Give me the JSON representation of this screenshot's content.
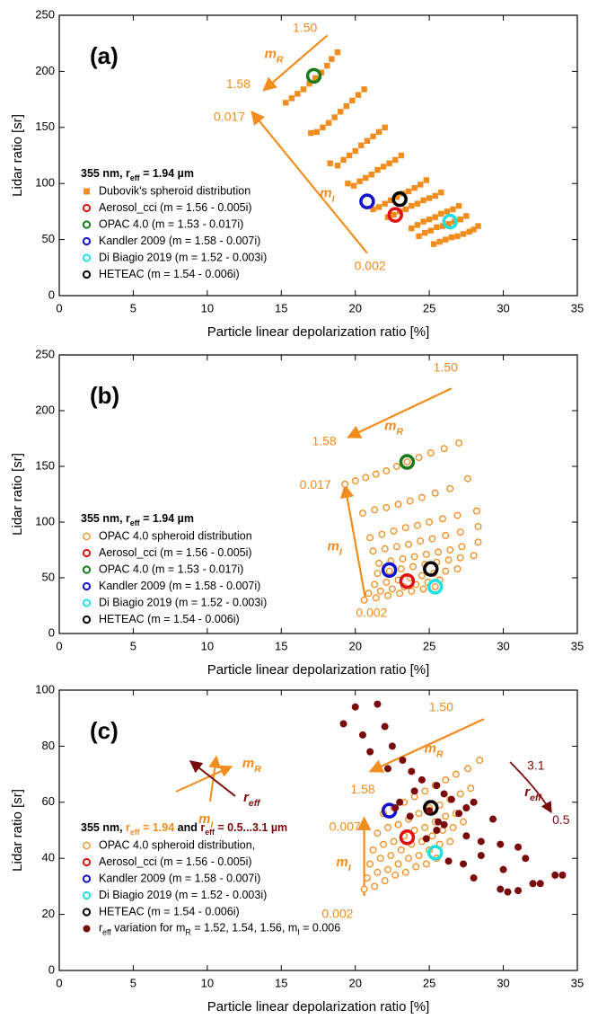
{
  "chart_data": [
    {
      "type": "scatter",
      "panel": "(a)",
      "xlabel": "Particle linear depolarization ratio [%]",
      "ylabel": "Lidar ratio [sr]",
      "xlim": [
        0,
        35
      ],
      "ylim": [
        0,
        250
      ],
      "xticks": [
        0,
        5,
        10,
        15,
        20,
        25,
        30,
        35
      ],
      "yticks": [
        0,
        50,
        100,
        150,
        200,
        250
      ],
      "legend_title": [
        {
          "text": "355 nm, r"
        },
        {
          "sub": "eff"
        },
        {
          "text": " = 1.94 µm"
        }
      ],
      "series": [
        {
          "name": "Dubovik's spheroid distribution",
          "color": "#f28c1c",
          "marker": "square",
          "x": [
            15.3,
            15.7,
            16.1,
            16.5,
            16.9,
            17.3,
            17.7,
            18.1,
            18.4,
            18.8,
            17,
            17.4,
            17.8,
            18.2,
            18.6,
            19,
            19.4,
            19.8,
            20.2,
            20.6,
            18.3,
            18.8,
            19.2,
            19.6,
            20,
            20.4,
            20.8,
            21.2,
            21.6,
            22,
            19.5,
            19.9,
            20.3,
            20.7,
            21.1,
            21.5,
            21.9,
            22.3,
            22.7,
            23.1,
            21.2,
            21.6,
            22,
            22.4,
            22.8,
            23.2,
            23.6,
            24,
            24.4,
            24.8,
            22.2,
            22.6,
            23,
            23.4,
            23.8,
            24.2,
            24.6,
            25,
            25.4,
            25.8,
            23.8,
            24.2,
            24.6,
            25,
            25.4,
            25.8,
            26.2,
            26.6,
            27,
            24.3,
            24.7,
            25.1,
            25.5,
            25.9,
            26.3,
            26.7,
            27.1,
            27.5,
            25.3,
            25.7,
            26.1,
            26.5,
            26.9,
            27.3,
            27.7,
            28,
            28.3
          ],
          "y": [
            172,
            176,
            180,
            184,
            189,
            194,
            199,
            205,
            211,
            217,
            145,
            146,
            150,
            154,
            159,
            164,
            169,
            174,
            179,
            184,
            118,
            116,
            121,
            125,
            129,
            134,
            138,
            142,
            146,
            150,
            100,
            98,
            102,
            105,
            108,
            112,
            115,
            118,
            121,
            125,
            77,
            79,
            82,
            85,
            88,
            91,
            93,
            96,
            99,
            103,
            70,
            72,
            75,
            77,
            80,
            82,
            85,
            87,
            89,
            92,
            60,
            63,
            66,
            68,
            70,
            73,
            75,
            77,
            80,
            53,
            56,
            58,
            61,
            62,
            64,
            66,
            68,
            71,
            46,
            48,
            50,
            52,
            53,
            55,
            57,
            59,
            62
          ]
        },
        {
          "name": "Aerosol_cci (m = 1.56 - 0.005i)",
          "color": "#e01010",
          "marker": "ring",
          "x": [
            22.7
          ],
          "y": [
            72
          ]
        },
        {
          "name": "OPAC 4.0 (m = 1.53 - 0.017i)",
          "color": "#1a7a1a",
          "marker": "ring",
          "x": [
            17.2
          ],
          "y": [
            196
          ]
        },
        {
          "name": "Kandler 2009 (m = 1.58 - 0.007i)",
          "color": "#1010d0",
          "marker": "ring",
          "x": [
            20.8
          ],
          "y": [
            84
          ]
        },
        {
          "name": "Di Biagio 2019 (m = 1.52 - 0.003i)",
          "color": "#22e0e0",
          "marker": "ring",
          "x": [
            26.4
          ],
          "y": [
            66
          ]
        },
        {
          "name": "HETEAC (m = 1.54 - 0.006i)",
          "color": "#000000",
          "marker": "ring",
          "x": [
            23
          ],
          "y": [
            86
          ]
        }
      ],
      "annotations": [
        {
          "text": "1.50",
          "color": "#f28c1c"
        },
        {
          "text": "1.58",
          "color": "#f28c1c"
        },
        {
          "parts": [
            {
              "text": "m"
            },
            {
              "sub": "R"
            }
          ],
          "color": "#f28c1c"
        },
        {
          "text": "0.017",
          "color": "#f28c1c"
        },
        {
          "text": "0.002",
          "color": "#f28c1c"
        },
        {
          "parts": [
            {
              "text": "m"
            },
            {
              "sub": "I"
            }
          ],
          "color": "#f28c1c"
        }
      ]
    },
    {
      "type": "scatter",
      "panel": "(b)",
      "xlabel": "Particle linear depolarization ratio [%]",
      "ylabel": "Lidar ratio [sr]",
      "xlim": [
        0,
        35
      ],
      "ylim": [
        0,
        250
      ],
      "xticks": [
        0,
        5,
        10,
        15,
        20,
        25,
        30,
        35
      ],
      "yticks": [
        0,
        50,
        100,
        150,
        200,
        250
      ],
      "legend_title": [
        {
          "text": "355 nm, r"
        },
        {
          "sub": "eff"
        },
        {
          "text": " = 1.94 µm"
        }
      ],
      "series": [
        {
          "name": "OPAC 4.0 spheroid distribution",
          "color": "#f28c1c",
          "marker": "circle",
          "x": [
            19.3,
            20,
            20.7,
            21.4,
            22.1,
            22.8,
            23.5,
            24.3,
            25.1,
            26,
            27,
            20.5,
            21.3,
            22.1,
            22.9,
            23.7,
            24.5,
            25.4,
            26.4,
            27.6,
            21,
            21.8,
            22.6,
            23.4,
            24.2,
            25,
            25.9,
            26.9,
            28.2,
            21.2,
            22,
            22.8,
            23.6,
            24.4,
            25.2,
            26.1,
            27.1,
            28.3,
            21.6,
            22.4,
            23.2,
            24,
            24.8,
            25.6,
            26.4,
            27.2,
            28.3,
            21.5,
            22.3,
            23.1,
            23.9,
            24.7,
            25.5,
            26.3,
            27.1,
            28,
            21.3,
            22.1,
            22.9,
            23.7,
            24.5,
            25.3,
            26.1,
            26.9,
            20.9,
            21.7,
            22.5,
            23.3,
            24.1,
            24.9,
            25.7,
            20.6,
            21.4,
            22.2,
            23,
            23.8,
            24.6,
            25.4
          ],
          "y": [
            134,
            137,
            140,
            143,
            146,
            150,
            154,
            158,
            162,
            166,
            171,
            108,
            111,
            113,
            116,
            119,
            122,
            126,
            130,
            139,
            86,
            89,
            92,
            95,
            97,
            100,
            103,
            106,
            110,
            74,
            76,
            78,
            80,
            83,
            85,
            88,
            91,
            96,
            63,
            65,
            67,
            69,
            71,
            73,
            75,
            78,
            82,
            54,
            56,
            58,
            60,
            62,
            64,
            66,
            68,
            70,
            44,
            46,
            48,
            50,
            52,
            54,
            56,
            58,
            36,
            38,
            40,
            42,
            44,
            46,
            48,
            30,
            32,
            34,
            36,
            38,
            40,
            42
          ]
        },
        {
          "name": "Aerosol_cci (m = 1.56 - 0.005i)",
          "color": "#e01010",
          "marker": "ring",
          "x": [
            23.5
          ],
          "y": [
            47
          ]
        },
        {
          "name": "OPAC 4.0 (m = 1.53 - 0.017i)",
          "color": "#1a7a1a",
          "marker": "ring",
          "x": [
            23.5
          ],
          "y": [
            154
          ]
        },
        {
          "name": "Kandler 2009 (m = 1.58 - 0.007i)",
          "color": "#1010d0",
          "marker": "ring",
          "x": [
            22.3
          ],
          "y": [
            57
          ]
        },
        {
          "name": "Di Biagio 2019 (m = 1.52 - 0.003i)",
          "color": "#22e0e0",
          "marker": "ring",
          "x": [
            25.4
          ],
          "y": [
            42
          ]
        },
        {
          "name": "HETEAC (m = 1.54 - 0.006i)",
          "color": "#000000",
          "marker": "ring",
          "x": [
            25.1
          ],
          "y": [
            58
          ]
        }
      ],
      "annotations": [
        {
          "text": "1.50",
          "color": "#f28c1c"
        },
        {
          "parts": [
            {
              "text": "m"
            },
            {
              "sub": "R"
            }
          ],
          "color": "#f28c1c"
        },
        {
          "text": "1.58",
          "color": "#f28c1c"
        },
        {
          "text": "0.017",
          "color": "#f28c1c"
        },
        {
          "text": "0.002",
          "color": "#f28c1c"
        },
        {
          "parts": [
            {
              "text": "m"
            },
            {
              "sub": "I"
            }
          ],
          "color": "#f28c1c"
        }
      ]
    },
    {
      "type": "scatter",
      "panel": "(c)",
      "xlabel": "Particle linear depolarization ratio [%]",
      "ylabel": "Lidar ratio [sr]",
      "xlim": [
        0,
        35
      ],
      "ylim": [
        0,
        100
      ],
      "xticks": [
        0,
        5,
        10,
        15,
        20,
        25,
        30,
        35
      ],
      "yticks": [
        0,
        20,
        40,
        60,
        80,
        100
      ],
      "legend_title": [
        {
          "text": "355 nm, "
        },
        {
          "text": "r",
          "color": "#f28c1c"
        },
        {
          "sub": "eff",
          "color": "#f28c1c"
        },
        {
          "text": " = 1.94",
          "color": "#f28c1c"
        },
        {
          "text": " and "
        },
        {
          "text": "r",
          "color": "#7a0a0a"
        },
        {
          "sub": "eff",
          "color": "#7a0a0a"
        },
        {
          "text": " = 0.5...3.1 µm",
          "color": "#7a0a0a"
        }
      ],
      "series": [
        {
          "name": "OPAC 4.0 spheroid distribution,",
          "color": "#f28c1c",
          "marker": "circle",
          "x": [
            20.6,
            21.3,
            22,
            22.7,
            23.4,
            24.1,
            24.8,
            25.5,
            20.8,
            21.5,
            22.2,
            22.9,
            23.6,
            24.3,
            25,
            25.7,
            26.4,
            21,
            21.7,
            22.4,
            23.1,
            23.8,
            24.5,
            25.2,
            25.9,
            26.6,
            27.3,
            21.2,
            21.9,
            22.6,
            23.3,
            24,
            24.7,
            25.4,
            26.1,
            26.8,
            27.5,
            21.5,
            22.2,
            22.9,
            23.6,
            24.3,
            25,
            25.7,
            26.4,
            27.1,
            27.8,
            21.9,
            22.6,
            23.3,
            24,
            24.7,
            25.4,
            26.1,
            26.8,
            27.6,
            28.4
          ],
          "y": [
            29,
            30,
            32,
            34,
            35,
            37,
            38,
            40,
            33,
            35,
            36,
            38,
            40,
            41,
            43,
            45,
            46,
            38,
            40,
            41,
            43,
            45,
            46,
            48,
            50,
            51,
            53,
            43,
            45,
            46,
            48,
            50,
            51,
            53,
            55,
            56,
            58,
            49,
            51,
            52,
            54,
            56,
            58,
            59,
            61,
            63,
            65,
            56,
            58,
            60,
            62,
            64,
            66,
            68,
            70,
            72,
            75
          ]
        },
        {
          "name": "Aerosol_cci (m = 1.56 - 0.005i)",
          "color": "#e01010",
          "marker": "ring",
          "x": [
            23.5
          ],
          "y": [
            47.5
          ]
        },
        {
          "name": "Kandler 2009 (m = 1.58 - 0.007i)",
          "color": "#1010d0",
          "marker": "ring",
          "x": [
            22.3
          ],
          "y": [
            57
          ]
        },
        {
          "name": "Di Biagio 2019 (m = 1.52 - 0.003i)",
          "color": "#22e0e0",
          "marker": "ring",
          "x": [
            25.4
          ],
          "y": [
            42
          ]
        },
        {
          "name": "HETEAC (m = 1.54 - 0.006i)",
          "color": "#000000",
          "marker": "ring",
          "x": [
            25.1
          ],
          "y": [
            58
          ]
        },
        {
          "name": [
            {
              "text": "r"
            },
            {
              "sub": "eff"
            },
            {
              "text": " variation for m"
            },
            {
              "sub": "R"
            },
            {
              "text": " = 1.52, 1.54, 1.56, m"
            },
            {
              "sub": "I"
            },
            {
              "text": " = 0.006"
            }
          ],
          "color": "#7a0a0a",
          "marker": "dot",
          "x": [
            19.2,
            20,
            21.5,
            20.5,
            22,
            21,
            22.5,
            23.2,
            22.2,
            23.8,
            24.5,
            25.5,
            24,
            23,
            26,
            26.5,
            27.5,
            28,
            27,
            26,
            25.5,
            27.5,
            28.5,
            29.3,
            29.8,
            31,
            30,
            31.5,
            29.8,
            30.3,
            31,
            32,
            32.5,
            33.5,
            34,
            28.5,
            25.6,
            24.8,
            26.3,
            27.3,
            28,
            25,
            22.7,
            23.7
          ],
          "y": [
            88,
            94,
            95,
            84,
            87,
            78,
            80,
            75,
            72,
            71,
            68,
            66,
            64,
            60,
            63,
            61,
            58,
            60,
            56,
            52,
            50,
            48,
            46,
            54,
            45,
            44,
            36,
            40,
            29,
            28,
            28.5,
            31,
            31,
            34,
            34,
            41,
            53,
            47,
            39,
            38,
            33,
            57,
            58,
            55
          ]
        }
      ],
      "annotations": [
        {
          "text": "1.50",
          "color": "#f28c1c"
        },
        {
          "parts": [
            {
              "text": "m"
            },
            {
              "sub": "R"
            }
          ],
          "color": "#f28c1c"
        },
        {
          "text": "1.58",
          "color": "#f28c1c"
        },
        {
          "text": "0.007",
          "color": "#f28c1c"
        },
        {
          "text": "0.002",
          "color": "#f28c1c"
        },
        {
          "parts": [
            {
              "text": "m"
            },
            {
              "sub": "I"
            }
          ],
          "color": "#f28c1c"
        },
        {
          "text": "3.1",
          "color": "#7a0a0a"
        },
        {
          "parts": [
            {
              "text": "r"
            },
            {
              "sub": "eff"
            }
          ],
          "color": "#7a0a0a"
        },
        {
          "text": "0.5",
          "color": "#7a0a0a"
        },
        {
          "parts": [
            {
              "text": "m"
            },
            {
              "sub": "R"
            }
          ],
          "color": "#f28c1c"
        },
        {
          "parts": [
            {
              "text": "m"
            },
            {
              "sub": "I"
            }
          ],
          "color": "#f28c1c"
        },
        {
          "parts": [
            {
              "text": "r"
            },
            {
              "sub": "eff"
            }
          ],
          "color": "#7a0a0a"
        }
      ]
    }
  ]
}
